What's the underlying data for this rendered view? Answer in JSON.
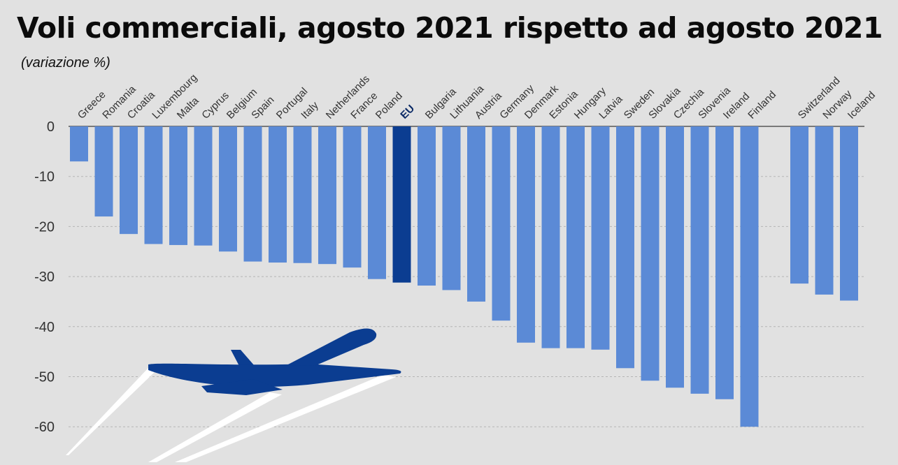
{
  "chart_data": {
    "type": "bar",
    "title": "Voli commerciali, agosto 2021 rispetto ad agosto 2021",
    "subtitle": "(variazione %)",
    "xlabel": "",
    "ylabel": "",
    "ylim": [
      -65,
      0
    ],
    "yticks": [
      0,
      -10,
      -20,
      -30,
      -40,
      -50,
      -60
    ],
    "grid": true,
    "highlight": "EU",
    "colors": {
      "bar": "#5b8ad6",
      "highlight": "#0b3d91",
      "plane": "#0b3d91",
      "background": "#e1e1e1",
      "grid": "#b5b5b5"
    },
    "categories": [
      "Greece",
      "Romania",
      "Croatia",
      "Luxembourg",
      "Malta",
      "Cyprus",
      "Belgium",
      "Spain",
      "Portugal",
      "Italy",
      "Netherlands",
      "France",
      "Poland",
      "EU",
      "Bulgaria",
      "Lithuania",
      "Austria",
      "Germany",
      "Denmark",
      "Estonia",
      "Hungary",
      "Latvia",
      "Sweden",
      "Slovakia",
      "Czechia",
      "Slovenia",
      "Ireland",
      "Finland",
      "Switzerland",
      "Norway",
      "Iceland"
    ],
    "values": [
      -7,
      -18,
      -21.5,
      -23.5,
      -23.7,
      -23.8,
      -25,
      -27,
      -27.2,
      -27.3,
      -27.5,
      -28.2,
      -30.5,
      -31.2,
      -31.8,
      -32.7,
      -35,
      -38.8,
      -43.2,
      -44.3,
      -44.3,
      -44.6,
      -48.3,
      -50.8,
      -52.2,
      -53.4,
      -54.5,
      -60,
      -31.4,
      -33.6,
      -34.8
    ],
    "gap_before": "Switzerland",
    "decoration": "airplane-icon"
  }
}
